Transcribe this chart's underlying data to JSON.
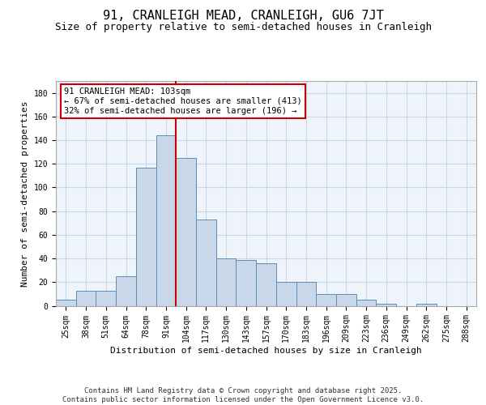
{
  "title1": "91, CRANLEIGH MEAD, CRANLEIGH, GU6 7JT",
  "title2": "Size of property relative to semi-detached houses in Cranleigh",
  "xlabel": "Distribution of semi-detached houses by size in Cranleigh",
  "ylabel": "Number of semi-detached properties",
  "categories": [
    "25sqm",
    "38sqm",
    "51sqm",
    "64sqm",
    "78sqm",
    "91sqm",
    "104sqm",
    "117sqm",
    "130sqm",
    "143sqm",
    "157sqm",
    "170sqm",
    "183sqm",
    "196sqm",
    "209sqm",
    "223sqm",
    "236sqm",
    "249sqm",
    "262sqm",
    "275sqm",
    "288sqm"
  ],
  "values": [
    5,
    13,
    13,
    25,
    117,
    144,
    125,
    73,
    40,
    39,
    36,
    20,
    20,
    10,
    10,
    5,
    2,
    0,
    2,
    0,
    0
  ],
  "bar_color": "#c8d8e8",
  "bar_edge_color": "#5b8db8",
  "vline_color": "#cc0000",
  "annotation_text": "91 CRANLEIGH MEAD: 103sqm\n← 67% of semi-detached houses are smaller (413)\n32% of semi-detached houses are larger (196) →",
  "annotation_box_color": "#ffffff",
  "annotation_box_edge_color": "#cc0000",
  "ylim": [
    0,
    190
  ],
  "yticks": [
    0,
    20,
    40,
    60,
    80,
    100,
    120,
    140,
    160,
    180
  ],
  "grid_color": "#c8d8e8",
  "background_color": "#eef4fa",
  "footer_text": "Contains HM Land Registry data © Crown copyright and database right 2025.\nContains public sector information licensed under the Open Government Licence v3.0.",
  "title1_fontsize": 11,
  "title2_fontsize": 9,
  "xlabel_fontsize": 8,
  "ylabel_fontsize": 8,
  "annotation_fontsize": 7.5,
  "footer_fontsize": 6.5,
  "tick_fontsize": 7
}
